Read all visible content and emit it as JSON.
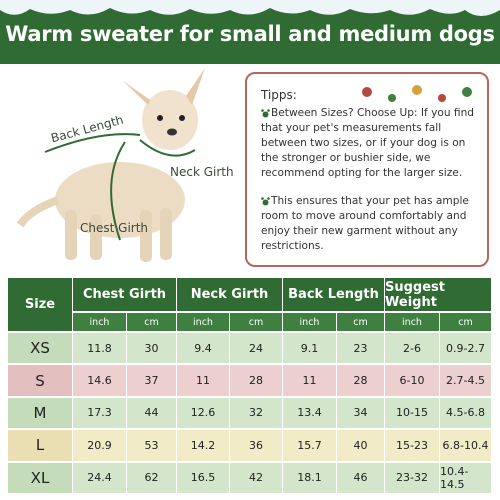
{
  "header": {
    "title": "Warm sweater for small and medium dogs"
  },
  "labels": {
    "back_length": "Back Length",
    "neck_girth": "Neck Girth",
    "chest_girth": "Chest Girth"
  },
  "tips": {
    "title": "Tipps:",
    "items": [
      "Between Sizes? Choose Up: If you find that your pet's measurements fall between two sizes, or if your dog is on the stronger or bushier side, we recommend opting for the larger size.",
      "This ensures that your pet has ample room to move around comfortably and enjoy their new garment without any restrictions."
    ]
  },
  "table": {
    "headers": [
      "Size",
      "Chest Girth",
      "Neck Girth",
      "Back Length",
      "Suggest Weight"
    ],
    "subheaders": [
      "inch",
      "cm",
      "inch",
      "cm",
      "inch",
      "cm",
      "inch",
      "cm"
    ],
    "rows": [
      [
        "XS",
        "11.8",
        "30",
        "9.4",
        "24",
        "9.1",
        "23",
        "2-6",
        "0.9-2.7"
      ],
      [
        "S",
        "14.6",
        "37",
        "11",
        "28",
        "11",
        "28",
        "6-10",
        "2.7-4.5"
      ],
      [
        "M",
        "17.3",
        "44",
        "12.6",
        "32",
        "13.4",
        "34",
        "10-15",
        "4.5-6.8"
      ],
      [
        "L",
        "20.9",
        "53",
        "14.2",
        "36",
        "15.7",
        "40",
        "15-23",
        "6.8-10.4"
      ],
      [
        "XL",
        "24.4",
        "62",
        "16.5",
        "42",
        "18.1",
        "46",
        "23-32",
        "10.4-14.5"
      ]
    ]
  }
}
